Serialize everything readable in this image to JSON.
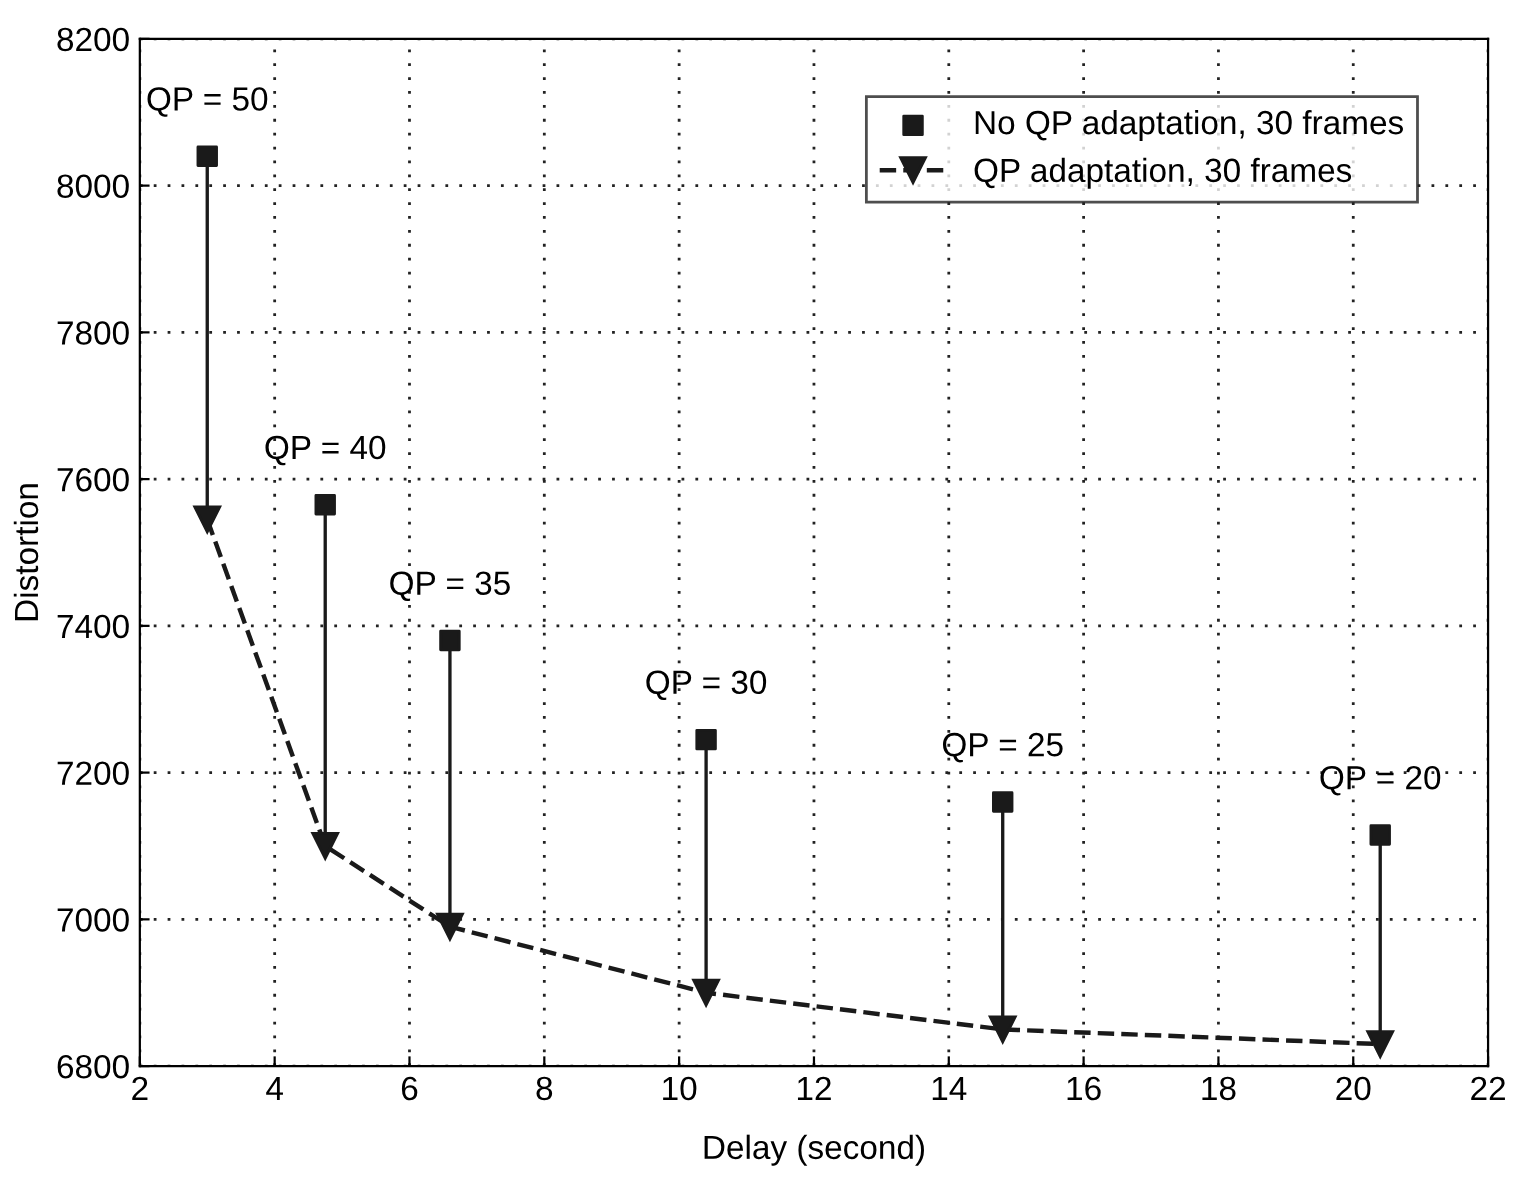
{
  "chart_data": {
    "type": "line",
    "xlabel": "Delay (second)",
    "ylabel": "Distortion",
    "xlim": [
      2,
      22
    ],
    "xticks": [
      2,
      4,
      6,
      8,
      10,
      12,
      14,
      16,
      18,
      20,
      22
    ],
    "ylim": [
      6800,
      8200
    ],
    "yticks": [
      6800,
      7000,
      7200,
      7400,
      7600,
      7800,
      8000,
      8200
    ],
    "grid": true,
    "legend": "top right",
    "series": [
      {
        "name": "No QP adaptation, 30 frames",
        "type": "scatter",
        "marker": "square",
        "color": "#1a1a1a",
        "x": [
          3.0,
          4.75,
          6.6,
          10.4,
          14.8,
          20.4
        ],
        "values": [
          8040,
          7565,
          7380,
          7245,
          7160,
          7115
        ]
      },
      {
        "name": "QP adaptation, 30 frames",
        "marker": "triangle",
        "line_style": "dashed",
        "color": "#1a1a1a",
        "x": [
          3.0,
          4.75,
          6.6,
          10.4,
          14.8,
          20.4
        ],
        "values": [
          7545,
          7100,
          6990,
          6900,
          6850,
          6830
        ]
      }
    ],
    "annotations": [
      {
        "text": "QP = 50",
        "x": 3.0,
        "y": 8040
      },
      {
        "text": "QP = 40",
        "x": 4.75,
        "y": 7565
      },
      {
        "text": "QP = 35",
        "x": 6.6,
        "y": 7380
      },
      {
        "text": "QP = 30",
        "x": 10.4,
        "y": 7245
      },
      {
        "text": "QP = 25",
        "x": 14.8,
        "y": 7160
      },
      {
        "text": "QP = 20",
        "x": 20.4,
        "y": 7115
      }
    ]
  }
}
